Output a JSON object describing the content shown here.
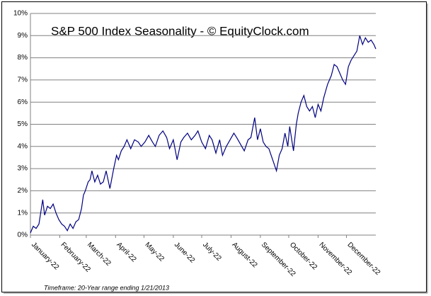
{
  "chart_data": {
    "type": "line",
    "title": "S&P 500 Index Seasonality - © EquityClock.com",
    "footnote": "Timeframe: 20-Year range ending 1/21/2013",
    "x": [
      0,
      3,
      6,
      9,
      13,
      15,
      18,
      21,
      24,
      27,
      30,
      33,
      36,
      39,
      42,
      45,
      48,
      51,
      54,
      56,
      58,
      61,
      63,
      65,
      68,
      71,
      74,
      77,
      80,
      84,
      88,
      91,
      93,
      96,
      99,
      102,
      106,
      110,
      114,
      117,
      121,
      125,
      129,
      132,
      136,
      140,
      144,
      147,
      151,
      155,
      159,
      162,
      166,
      170,
      174,
      177,
      181,
      185,
      189,
      192,
      196,
      200,
      203,
      207,
      211,
      215,
      218,
      222,
      226,
      230,
      233,
      237,
      240,
      243,
      246,
      249,
      252,
      256,
      260,
      263,
      266,
      269,
      272,
      274,
      278,
      281,
      283,
      286,
      289,
      292,
      295,
      298,
      301,
      304,
      307,
      310,
      314,
      318,
      321,
      324,
      327,
      330,
      333,
      336,
      339,
      342,
      345,
      348,
      351,
      354,
      357,
      360,
      363,
      365
    ],
    "series": [
      {
        "name": "S&P 500",
        "color": "#000080",
        "values": [
          0.1,
          0.4,
          0.3,
          0.5,
          1.6,
          0.9,
          1.3,
          1.2,
          1.4,
          1.0,
          0.7,
          0.5,
          0.4,
          0.2,
          0.5,
          0.3,
          0.6,
          0.7,
          1.2,
          1.8,
          2.0,
          2.4,
          2.5,
          2.9,
          2.4,
          2.7,
          2.3,
          2.4,
          2.9,
          2.1,
          3.0,
          3.6,
          3.4,
          3.8,
          4.0,
          4.3,
          3.9,
          4.3,
          4.2,
          4.0,
          4.2,
          4.5,
          4.2,
          4.0,
          4.5,
          4.7,
          4.4,
          3.9,
          4.3,
          3.4,
          4.2,
          4.4,
          4.6,
          4.3,
          4.5,
          4.7,
          4.2,
          3.9,
          4.5,
          4.3,
          3.7,
          4.3,
          3.6,
          4.0,
          4.3,
          4.6,
          4.4,
          4.1,
          3.8,
          4.3,
          4.4,
          5.3,
          4.3,
          4.8,
          4.2,
          4.0,
          3.9,
          3.4,
          2.9,
          3.6,
          3.9,
          4.6,
          4.0,
          4.9,
          3.8,
          5.0,
          5.5,
          6.0,
          6.3,
          5.8,
          5.6,
          5.8,
          5.3,
          5.9,
          5.6,
          6.2,
          6.8,
          7.2,
          7.7,
          7.6,
          7.3,
          7.0,
          6.8,
          7.6,
          7.9,
          8.1,
          8.3,
          9.0,
          8.6,
          8.9,
          8.7,
          8.8,
          8.6,
          8.4
        ]
      }
    ],
    "xlim": [
      0,
      365
    ],
    "xticks": [
      {
        "value": 0,
        "label": "January-22"
      },
      {
        "value": 31,
        "label": "February-22"
      },
      {
        "value": 59,
        "label": "March-22"
      },
      {
        "value": 90,
        "label": "April-22"
      },
      {
        "value": 120,
        "label": "May-22"
      },
      {
        "value": 151,
        "label": "June-22"
      },
      {
        "value": 181,
        "label": "July-22"
      },
      {
        "value": 212,
        "label": "August-22"
      },
      {
        "value": 243,
        "label": "September-22"
      },
      {
        "value": 273,
        "label": "October-22"
      },
      {
        "value": 304,
        "label": "November-22"
      },
      {
        "value": 334,
        "label": "December-22"
      }
    ],
    "ylim": [
      0,
      10
    ],
    "yticks": [
      {
        "value": 0,
        "label": "0%"
      },
      {
        "value": 1,
        "label": "1%"
      },
      {
        "value": 2,
        "label": "2%"
      },
      {
        "value": 3,
        "label": "3%"
      },
      {
        "value": 4,
        "label": "4%"
      },
      {
        "value": 5,
        "label": "5%"
      },
      {
        "value": 6,
        "label": "6%"
      },
      {
        "value": 7,
        "label": "7%"
      },
      {
        "value": 8,
        "label": "8%"
      },
      {
        "value": 9,
        "label": "9%"
      },
      {
        "value": 10,
        "label": "10%"
      }
    ],
    "grid": true
  }
}
